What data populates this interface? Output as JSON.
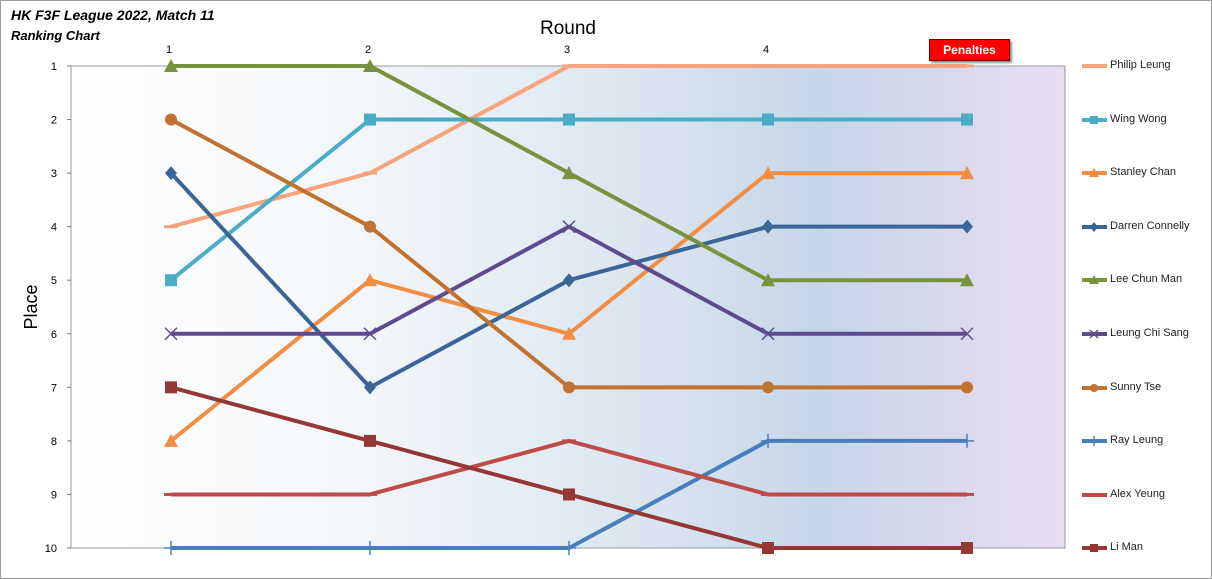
{
  "header": {
    "title_line1": "HK F3F League 2022, Match 11",
    "title_line2": "Ranking Chart"
  },
  "chart_data": {
    "type": "line",
    "title": "Round",
    "ylabel": "Place",
    "categories": [
      "1",
      "2",
      "3",
      "4",
      "Penalties"
    ],
    "penalties_label": "Penalties",
    "y_reversed": true,
    "ylim": [
      1,
      10
    ],
    "y_ticks": [
      "1",
      "2",
      "3",
      "4",
      "5",
      "6",
      "7",
      "8",
      "9",
      "10"
    ],
    "grid": false,
    "legend_position": "right",
    "series": [
      {
        "name": "Philip Leung",
        "values": [
          4,
          3,
          1,
          1,
          1
        ],
        "color": "#F7A37B",
        "marker": "dash"
      },
      {
        "name": "Wing Wong",
        "values": [
          5,
          2,
          2,
          2,
          2
        ],
        "color": "#4BACC6",
        "marker": "square"
      },
      {
        "name": "Stanley Chan",
        "values": [
          8,
          5,
          6,
          3,
          3
        ],
        "color": "#F08E45",
        "marker": "triangle"
      },
      {
        "name": "Darren Connelly",
        "values": [
          3,
          7,
          5,
          4,
          4
        ],
        "color": "#3A6596",
        "marker": "diamond"
      },
      {
        "name": "Lee Chun Man",
        "values": [
          1,
          1,
          3,
          5,
          5
        ],
        "color": "#77933C",
        "marker": "triangle"
      },
      {
        "name": "Leung Chi Sang",
        "values": [
          6,
          6,
          4,
          6,
          6
        ],
        "color": "#5F4B8B",
        "marker": "x"
      },
      {
        "name": "Sunny Tse",
        "values": [
          2,
          4,
          7,
          7,
          7
        ],
        "color": "#C0722E",
        "marker": "circle"
      },
      {
        "name": "Ray Leung",
        "values": [
          10,
          10,
          10,
          8,
          8
        ],
        "color": "#4A7EBB",
        "marker": "plus"
      },
      {
        "name": "Alex Yeung",
        "values": [
          9,
          9,
          8,
          9,
          9
        ],
        "color": "#BE4B48",
        "marker": "dash"
      },
      {
        "name": "Li Man",
        "values": [
          7,
          8,
          9,
          10,
          10
        ],
        "color": "#953735",
        "marker": "square"
      }
    ]
  }
}
